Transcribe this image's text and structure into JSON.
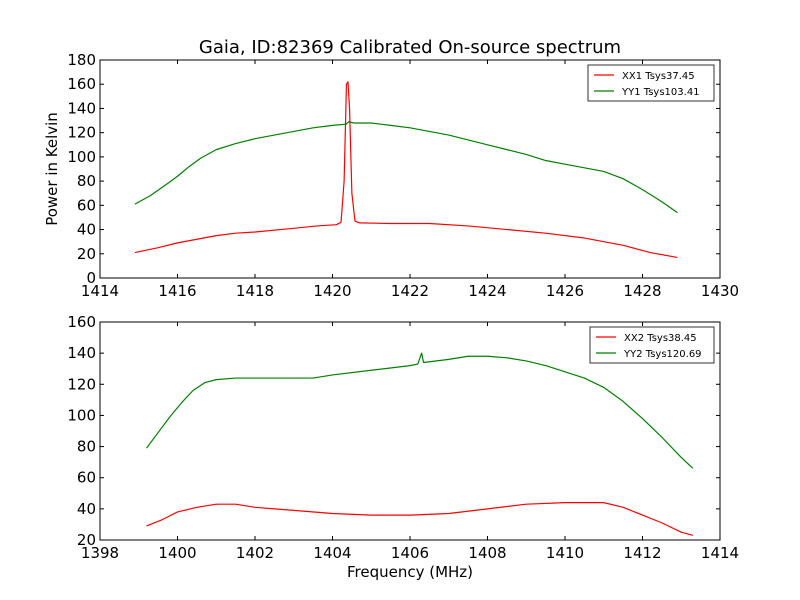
{
  "figure": {
    "title": "Gaia, ID:82369 Calibrated On-source spectrum",
    "xlabel": "Frequency (MHz)",
    "ylabel": "Power in Kelvin"
  },
  "chart_data": [
    {
      "type": "line",
      "title": "Gaia, ID:82369 Calibrated On-source spectrum",
      "xlabel": "",
      "ylabel": "Power in Kelvin",
      "xlim": [
        1414,
        1430
      ],
      "ylim": [
        0,
        180
      ],
      "xticks": [
        1414,
        1416,
        1418,
        1420,
        1422,
        1424,
        1426,
        1428,
        1430
      ],
      "yticks": [
        0,
        20,
        40,
        60,
        80,
        100,
        120,
        140,
        160,
        180
      ],
      "legend_position": "top-right",
      "grid": false,
      "series": [
        {
          "name": "XX1 Tsys37.45",
          "color": "#ff0000",
          "points": [
            [
              1414.9,
              21
            ],
            [
              1415.5,
              25
            ],
            [
              1416.0,
              29
            ],
            [
              1416.5,
              32
            ],
            [
              1417.0,
              35
            ],
            [
              1417.5,
              37
            ],
            [
              1418.0,
              38
            ],
            [
              1419.0,
              41
            ],
            [
              1419.6,
              43
            ],
            [
              1420.1,
              44
            ],
            [
              1420.22,
              46
            ],
            [
              1420.3,
              80
            ],
            [
              1420.36,
              160
            ],
            [
              1420.4,
              162
            ],
            [
              1420.44,
              140
            ],
            [
              1420.5,
              70
            ],
            [
              1420.58,
              47
            ],
            [
              1420.7,
              45.5
            ],
            [
              1421.5,
              45
            ],
            [
              1422.5,
              45
            ],
            [
              1423.5,
              43
            ],
            [
              1424.5,
              40
            ],
            [
              1425.5,
              37
            ],
            [
              1426.5,
              33
            ],
            [
              1427.5,
              27
            ],
            [
              1428.2,
              21
            ],
            [
              1428.9,
              17
            ]
          ]
        },
        {
          "name": "YY1 Tsys103.41",
          "color": "#008000",
          "points": [
            [
              1414.9,
              61
            ],
            [
              1415.3,
              68
            ],
            [
              1415.7,
              77
            ],
            [
              1416.0,
              84
            ],
            [
              1416.3,
              92
            ],
            [
              1416.6,
              99
            ],
            [
              1417.0,
              106
            ],
            [
              1417.5,
              111
            ],
            [
              1418.0,
              115
            ],
            [
              1418.5,
              118
            ],
            [
              1419.0,
              121
            ],
            [
              1419.5,
              124
            ],
            [
              1420.0,
              126
            ],
            [
              1420.35,
              127
            ],
            [
              1420.42,
              129
            ],
            [
              1420.55,
              128
            ],
            [
              1421.0,
              128
            ],
            [
              1421.5,
              126
            ],
            [
              1422.0,
              124
            ],
            [
              1422.5,
              121
            ],
            [
              1423.0,
              118
            ],
            [
              1423.5,
              114
            ],
            [
              1424.0,
              110
            ],
            [
              1424.5,
              106
            ],
            [
              1425.0,
              102
            ],
            [
              1425.5,
              97
            ],
            [
              1426.0,
              94
            ],
            [
              1426.5,
              91
            ],
            [
              1427.0,
              88
            ],
            [
              1427.5,
              82
            ],
            [
              1428.0,
              73
            ],
            [
              1428.5,
              63
            ],
            [
              1428.9,
              54
            ]
          ]
        }
      ]
    },
    {
      "type": "line",
      "title": "",
      "xlabel": "Frequency (MHz)",
      "ylabel": "",
      "xlim": [
        1398,
        1414
      ],
      "ylim": [
        20,
        160
      ],
      "xticks": [
        1398,
        1400,
        1402,
        1404,
        1406,
        1408,
        1410,
        1412,
        1414
      ],
      "yticks": [
        20,
        40,
        60,
        80,
        100,
        120,
        140,
        160
      ],
      "legend_position": "top-right",
      "grid": false,
      "series": [
        {
          "name": "XX2 Tsys38.45",
          "color": "#ff0000",
          "points": [
            [
              1399.2,
              29
            ],
            [
              1399.6,
              33
            ],
            [
              1400.0,
              38
            ],
            [
              1400.5,
              41
            ],
            [
              1401.0,
              43
            ],
            [
              1401.5,
              43
            ],
            [
              1402.0,
              41
            ],
            [
              1402.5,
              40
            ],
            [
              1403.0,
              39
            ],
            [
              1404.0,
              37
            ],
            [
              1405.0,
              36
            ],
            [
              1406.0,
              36
            ],
            [
              1407.0,
              37
            ],
            [
              1408.0,
              40
            ],
            [
              1409.0,
              43
            ],
            [
              1410.0,
              44
            ],
            [
              1410.5,
              44
            ],
            [
              1411.0,
              44
            ],
            [
              1411.5,
              41
            ],
            [
              1412.0,
              36
            ],
            [
              1412.5,
              31
            ],
            [
              1413.0,
              25
            ],
            [
              1413.3,
              23
            ]
          ]
        },
        {
          "name": "YY2 Tsys120.69",
          "color": "#008000",
          "points": [
            [
              1399.2,
              79
            ],
            [
              1399.5,
              89
            ],
            [
              1399.8,
              99
            ],
            [
              1400.1,
              108
            ],
            [
              1400.4,
              116
            ],
            [
              1400.7,
              121
            ],
            [
              1401.0,
              123
            ],
            [
              1401.5,
              124
            ],
            [
              1402.0,
              124
            ],
            [
              1403.0,
              124
            ],
            [
              1403.5,
              124
            ],
            [
              1404.0,
              126
            ],
            [
              1405.0,
              129
            ],
            [
              1406.0,
              132
            ],
            [
              1406.2,
              133
            ],
            [
              1406.3,
              140
            ],
            [
              1406.35,
              134
            ],
            [
              1407.0,
              136
            ],
            [
              1407.5,
              138
            ],
            [
              1408.0,
              138
            ],
            [
              1408.5,
              137
            ],
            [
              1409.0,
              135
            ],
            [
              1409.5,
              132
            ],
            [
              1410.0,
              128
            ],
            [
              1410.5,
              124
            ],
            [
              1411.0,
              118
            ],
            [
              1411.5,
              109
            ],
            [
              1412.0,
              98
            ],
            [
              1412.5,
              86
            ],
            [
              1413.0,
              73
            ],
            [
              1413.3,
              66
            ]
          ]
        }
      ]
    }
  ]
}
